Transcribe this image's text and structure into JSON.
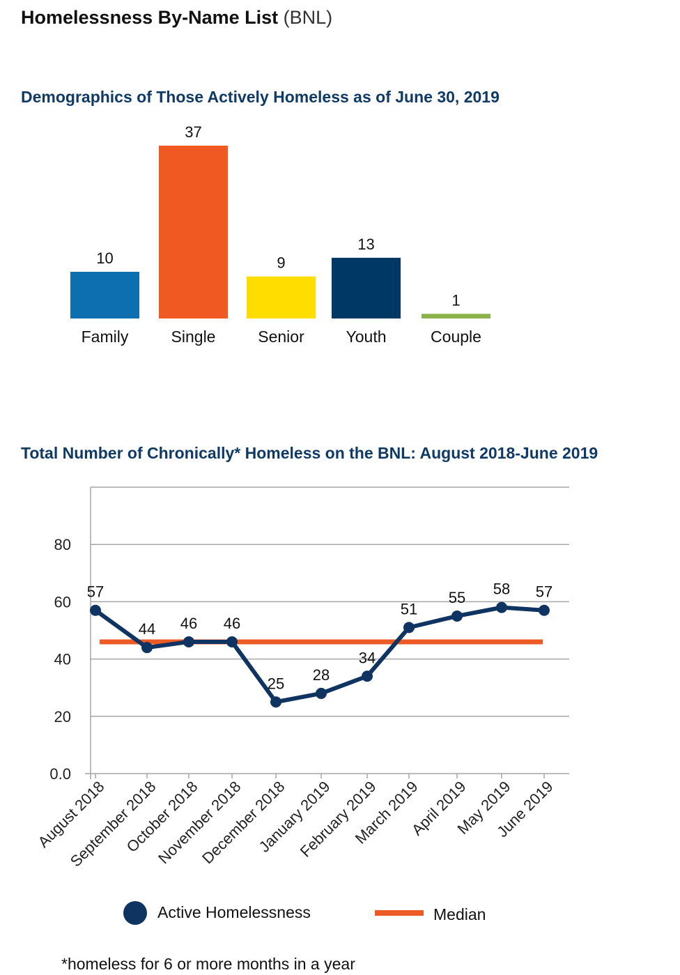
{
  "page": {
    "title_main": "Homelessness By-Name List",
    "title_sub": "(BNL)",
    "footnote": "*homeless for 6 or more months in a year"
  },
  "chart_data": [
    {
      "type": "bar",
      "title": "Demographics of Those Actively Homeless as of June 30, 2019",
      "categories": [
        "Family",
        "Single",
        "Senior",
        "Youth",
        "Couple"
      ],
      "values": [
        10,
        37,
        9,
        13,
        1
      ],
      "colors": [
        "#0e6fb0",
        "#f05a22",
        "#ffdd00",
        "#003865",
        "#8cb24a"
      ],
      "data_labels": true,
      "grid": false,
      "ylim": [
        0,
        37
      ]
    },
    {
      "type": "line",
      "title": "Total Number of Chronically* Homeless on the BNL: August 2018-June 2019",
      "categories": [
        "August 2018",
        "September 2018",
        "October 2018",
        "November 2018",
        "December 2018",
        "January 2019",
        "February 2019",
        "March 2019",
        "April 2019",
        "May 2019",
        "June 2019"
      ],
      "series": [
        {
          "name": "Active Homelessness",
          "values": [
            57,
            44,
            46,
            46,
            25,
            28,
            34,
            51,
            55,
            58,
            57
          ],
          "color": "#0f3461"
        },
        {
          "name": "Median",
          "values": [
            46,
            46,
            46,
            46,
            46,
            46,
            46,
            46,
            46,
            46,
            46
          ],
          "color": "#ee5a24"
        }
      ],
      "point_value_labels": [
        "57",
        "44",
        "46",
        "46",
        "25",
        "28",
        "34",
        "51",
        "55",
        "58",
        "57"
      ],
      "yticks": [
        "0.0",
        "20",
        "40",
        "60",
        "80"
      ],
      "ytick_values": [
        0,
        20,
        40,
        60,
        80
      ],
      "ylim": [
        0,
        100
      ],
      "grid": true,
      "legend_position": "bottom"
    }
  ]
}
